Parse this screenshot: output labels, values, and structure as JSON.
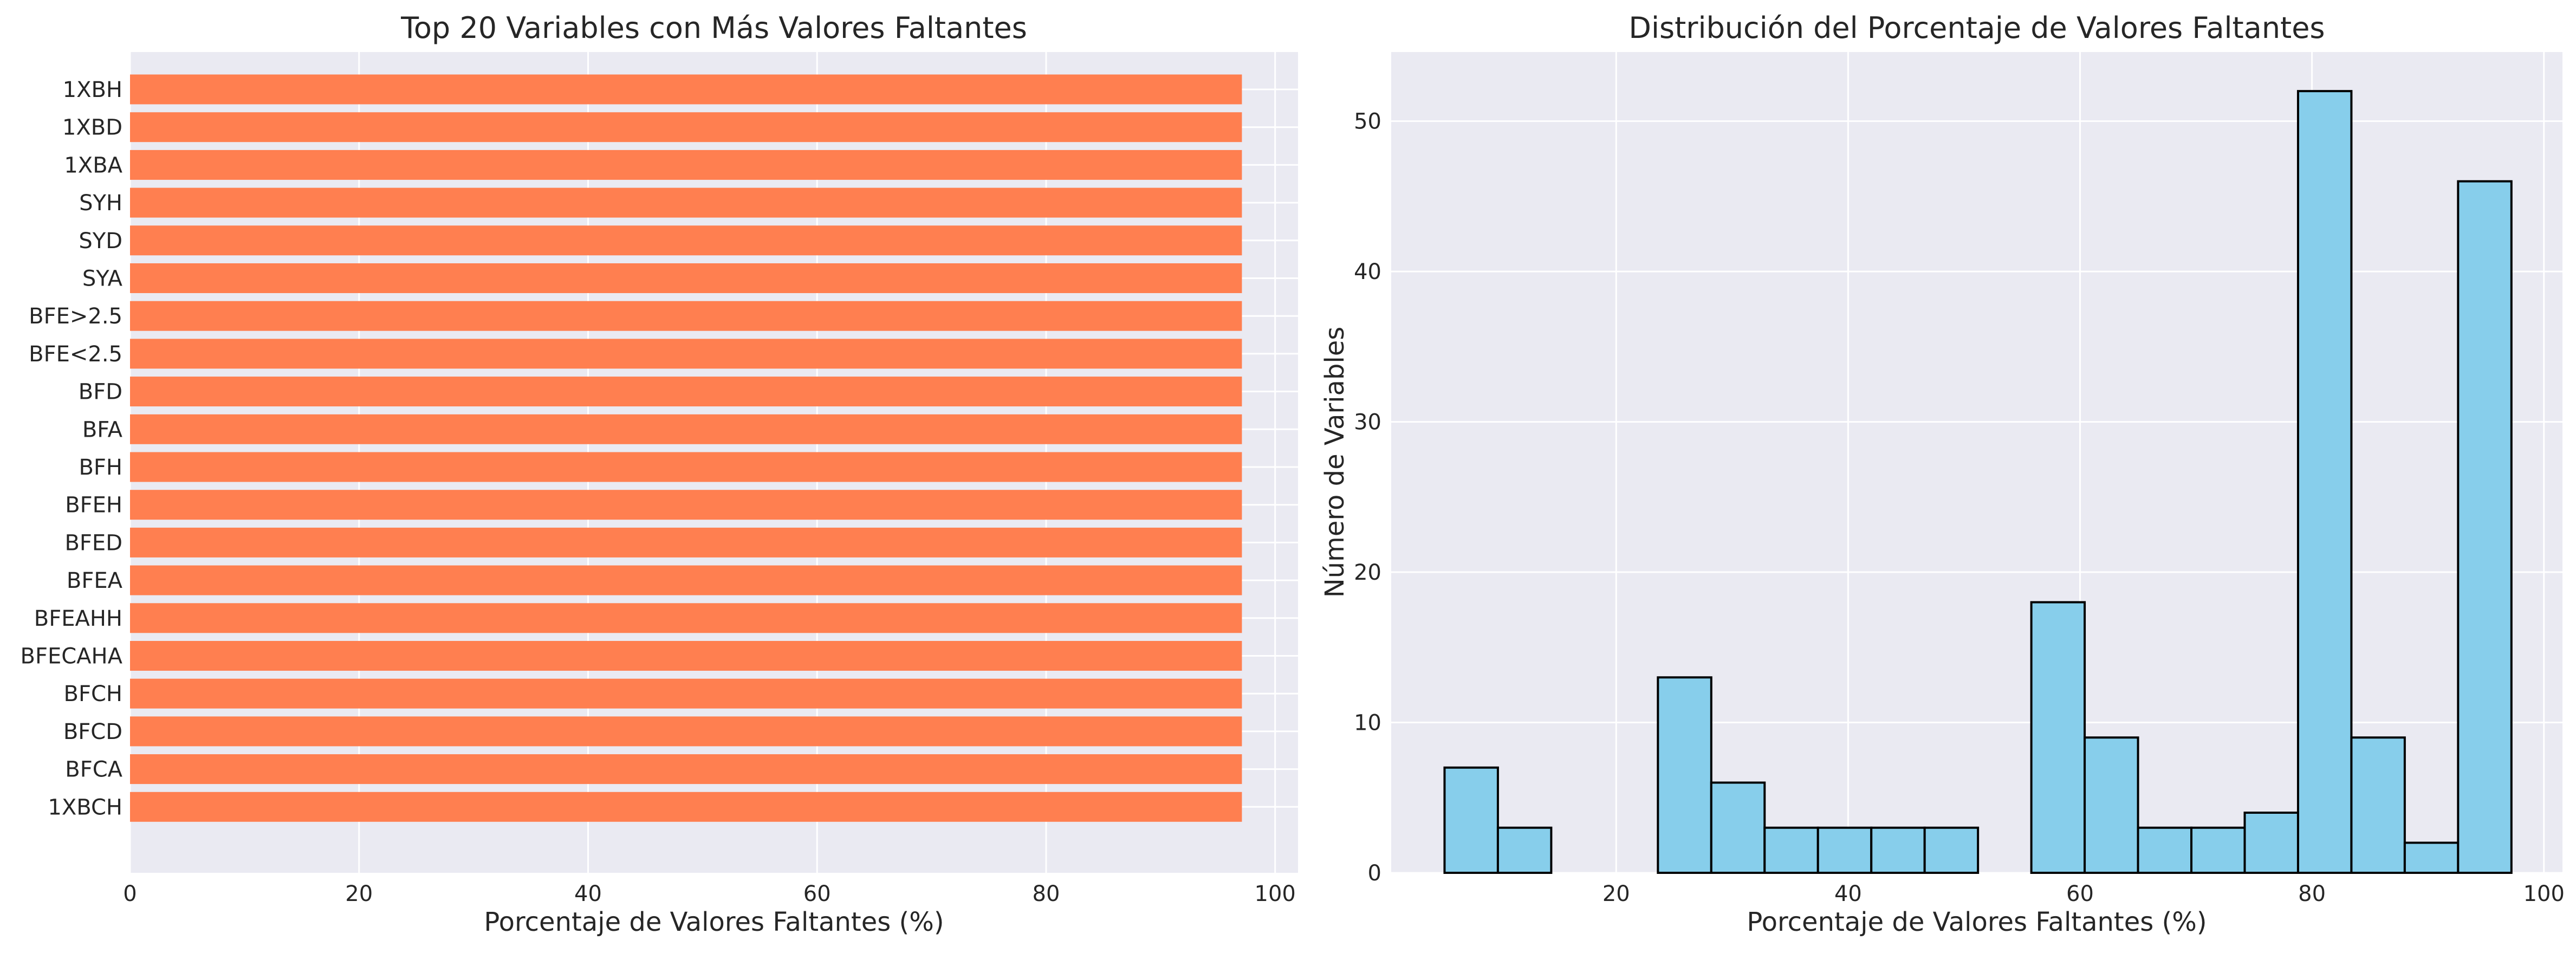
{
  "chart_data": [
    {
      "type": "bar",
      "orientation": "horizontal",
      "title": "Top 20 Variables con Más Valores Faltantes",
      "xlabel": "Porcentaje de Valores Faltantes (%)",
      "ylabel": "",
      "xlim": [
        0,
        102
      ],
      "xticks": [
        0,
        20,
        40,
        60,
        80,
        100
      ],
      "categories": [
        "1XBH",
        "1XBD",
        "1XBA",
        "SYH",
        "SYD",
        "SYA",
        "BFE>2.5",
        "BFE<2.5",
        "BFD",
        "BFA",
        "BFH",
        "BFEH",
        "BFED",
        "BFEA",
        "BFEAHH",
        "BFECAHA",
        "BFCH",
        "BFCD",
        "BFCA",
        "1XBCH"
      ],
      "values": [
        97.1,
        97.1,
        97.1,
        97.1,
        97.1,
        97.1,
        97.1,
        97.1,
        97.1,
        97.1,
        97.1,
        97.1,
        97.1,
        97.1,
        97.1,
        97.1,
        97.1,
        97.1,
        97.1,
        97.1
      ],
      "color": "#FF7F50",
      "grid": true
    },
    {
      "type": "histogram",
      "title": "Distribución del Porcentaje de Valores Faltantes",
      "xlabel": "Porcentaje de Valores Faltantes (%)",
      "ylabel": "Número de Variables",
      "xlim": [
        0.6,
        101.6
      ],
      "ylim": [
        0,
        54.6
      ],
      "xticks": [
        20,
        40,
        60,
        80,
        100
      ],
      "yticks": [
        0,
        10,
        20,
        30,
        40,
        50
      ],
      "bins": [
        {
          "start": 5.2,
          "end": 9.8,
          "count": 7
        },
        {
          "start": 9.8,
          "end": 14.4,
          "count": 3
        },
        {
          "start": 14.4,
          "end": 19.0,
          "count": 0
        },
        {
          "start": 19.0,
          "end": 23.6,
          "count": 0
        },
        {
          "start": 23.6,
          "end": 28.2,
          "count": 13
        },
        {
          "start": 28.2,
          "end": 32.8,
          "count": 6
        },
        {
          "start": 32.8,
          "end": 37.4,
          "count": 3
        },
        {
          "start": 37.4,
          "end": 42.0,
          "count": 3
        },
        {
          "start": 42.0,
          "end": 46.6,
          "count": 3
        },
        {
          "start": 46.6,
          "end": 51.2,
          "count": 3
        },
        {
          "start": 51.2,
          "end": 55.8,
          "count": 0
        },
        {
          "start": 55.8,
          "end": 60.4,
          "count": 18
        },
        {
          "start": 60.4,
          "end": 65.0,
          "count": 9
        },
        {
          "start": 65.0,
          "end": 69.6,
          "count": 3
        },
        {
          "start": 69.6,
          "end": 74.2,
          "count": 3
        },
        {
          "start": 74.2,
          "end": 78.8,
          "count": 4
        },
        {
          "start": 78.8,
          "end": 83.4,
          "count": 52
        },
        {
          "start": 83.4,
          "end": 88.0,
          "count": 9
        },
        {
          "start": 88.0,
          "end": 92.6,
          "count": 2
        },
        {
          "start": 92.6,
          "end": 97.2,
          "count": 46
        }
      ],
      "color": "#87CEEB",
      "edgecolor": "#000000",
      "grid": true
    }
  ]
}
